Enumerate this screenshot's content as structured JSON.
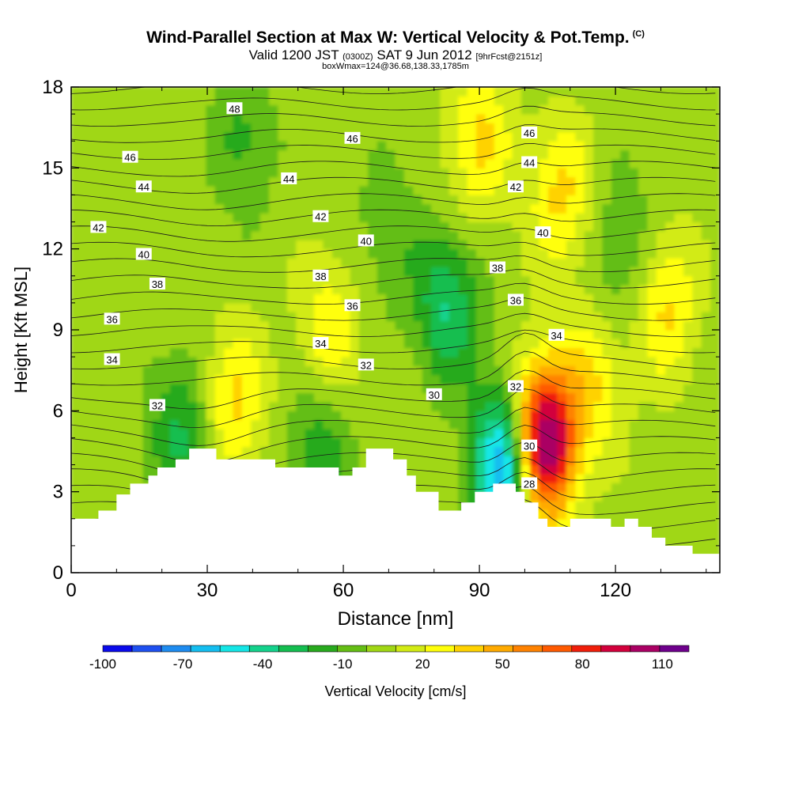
{
  "chart_data": {
    "type": "heatmap",
    "title": "Wind-Parallel Section at Max W: Vertical Velocity & Pot.Temp.",
    "title_corner": "(C)",
    "subtitle_main": "Valid 1200 JST",
    "subtitle_utc": "(0300Z)",
    "subtitle_date": "SAT 9 Jun 2012",
    "subtitle_fcst": "[9hrFcst@2151z]",
    "subtitle2": "boxWmax=124@36.68,138.33,1785m",
    "xlabel": "Distance [nm]",
    "ylabel": "Height [Kft MSL]",
    "xlim": [
      0,
      143
    ],
    "ylim": [
      0,
      18
    ],
    "x_ticks": [
      "0",
      "30",
      "60",
      "90",
      "120"
    ],
    "y_ticks": [
      "0",
      "3",
      "6",
      "9",
      "12",
      "15",
      "18"
    ],
    "colorbar": {
      "label": "Vertical Velocity [cm/s]",
      "tick_labels": [
        "-100",
        "-70",
        "-40",
        "-10",
        "20",
        "50",
        "80",
        "110"
      ],
      "min": -100,
      "max": 120,
      "colors": [
        "#0a0aeb",
        "#1e50f0",
        "#1e8cf0",
        "#14bef0",
        "#14e6e6",
        "#14d28c",
        "#14be50",
        "#28aa1e",
        "#64be14",
        "#a0d714",
        "#d2eb14",
        "#ffff0a",
        "#ffd200",
        "#ffaa00",
        "#ff8200",
        "#ff5a00",
        "#f01e0a",
        "#d2003c",
        "#aa0064",
        "#6e008c"
      ]
    },
    "wind_speed_note": "",
    "terrain": [
      [
        0,
        2
      ],
      [
        6,
        2
      ],
      [
        6,
        2.3
      ],
      [
        10,
        2.3
      ],
      [
        10,
        2.9
      ],
      [
        13,
        2.9
      ],
      [
        13,
        3.3
      ],
      [
        17,
        3.3
      ],
      [
        17,
        3.6
      ],
      [
        19,
        3.6
      ],
      [
        19,
        3.9
      ],
      [
        23,
        3.9
      ],
      [
        23,
        4.2
      ],
      [
        26,
        4.2
      ],
      [
        26,
        4.6
      ],
      [
        32,
        4.6
      ],
      [
        32,
        4.2
      ],
      [
        45,
        4.2
      ],
      [
        45,
        3.9
      ],
      [
        59,
        3.9
      ],
      [
        59,
        3.6
      ],
      [
        62,
        3.6
      ],
      [
        62,
        3.9
      ],
      [
        65,
        3.9
      ],
      [
        65,
        4.6
      ],
      [
        71,
        4.6
      ],
      [
        71,
        4.2
      ],
      [
        74,
        4.2
      ],
      [
        74,
        3.6
      ],
      [
        76,
        3.6
      ],
      [
        76,
        3.0
      ],
      [
        81,
        3.0
      ],
      [
        81,
        2.3
      ],
      [
        86,
        2.3
      ],
      [
        86,
        2.6
      ],
      [
        89,
        2.6
      ],
      [
        89,
        3.0
      ],
      [
        93,
        3.0
      ],
      [
        93,
        3.3
      ],
      [
        98,
        3.3
      ],
      [
        98,
        3.0
      ],
      [
        100,
        3.0
      ],
      [
        100,
        2.6
      ],
      [
        103,
        2.6
      ],
      [
        103,
        2.0
      ],
      [
        105,
        2.0
      ],
      [
        105,
        1.7
      ],
      [
        110,
        1.7
      ],
      [
        110,
        2.0
      ],
      [
        119,
        2.0
      ],
      [
        119,
        1.7
      ],
      [
        122,
        1.7
      ],
      [
        122,
        2.0
      ],
      [
        125,
        2.0
      ],
      [
        125,
        1.7
      ],
      [
        128,
        1.7
      ],
      [
        128,
        1.3
      ],
      [
        131,
        1.3
      ],
      [
        131,
        1.0
      ],
      [
        137,
        1.0
      ],
      [
        137,
        0.7
      ],
      [
        143,
        0.7
      ]
    ],
    "w_centers": [
      {
        "x": 104,
        "y": 4.8,
        "w": 120
      },
      {
        "x": 96,
        "y": 4.0,
        "w": -85
      },
      {
        "x": 83,
        "y": 9.8,
        "w": -40
      },
      {
        "x": 24,
        "y": 5.2,
        "w": -30
      },
      {
        "x": 55,
        "y": 4.6,
        "w": -25
      },
      {
        "x": 38,
        "y": 16.0,
        "w": -20
      },
      {
        "x": 122,
        "y": 12.0,
        "w": -20
      },
      {
        "x": 108,
        "y": 14.0,
        "w": 30
      },
      {
        "x": 90,
        "y": 16.0,
        "w": 30
      },
      {
        "x": 57,
        "y": 9.0,
        "w": 25
      },
      {
        "x": 36,
        "y": 6.4,
        "w": 30
      },
      {
        "x": 131,
        "y": 10.0,
        "w": 30
      },
      {
        "x": 70,
        "y": 12.5,
        "w": -15
      },
      {
        "x": 115,
        "y": 7.0,
        "w": 25
      }
    ],
    "theta_labels": [
      {
        "text": "48",
        "x": 36,
        "y": 17.2
      },
      {
        "text": "46",
        "x": 13,
        "y": 15.4
      },
      {
        "text": "46",
        "x": 62,
        "y": 16.1
      },
      {
        "text": "46",
        "x": 101,
        "y": 16.3
      },
      {
        "text": "44",
        "x": 16,
        "y": 14.3
      },
      {
        "text": "44",
        "x": 48,
        "y": 14.6
      },
      {
        "text": "44",
        "x": 101,
        "y": 15.2
      },
      {
        "text": "42",
        "x": 6,
        "y": 12.8
      },
      {
        "text": "42",
        "x": 55,
        "y": 13.2
      },
      {
        "text": "42",
        "x": 98,
        "y": 14.3
      },
      {
        "text": "40",
        "x": 16,
        "y": 11.8
      },
      {
        "text": "40",
        "x": 65,
        "y": 12.3
      },
      {
        "text": "40",
        "x": 104,
        "y": 12.6
      },
      {
        "text": "38",
        "x": 19,
        "y": 10.7
      },
      {
        "text": "38",
        "x": 55,
        "y": 11.0
      },
      {
        "text": "38",
        "x": 94,
        "y": 11.3
      },
      {
        "text": "36",
        "x": 9,
        "y": 9.4
      },
      {
        "text": "36",
        "x": 62,
        "y": 9.9
      },
      {
        "text": "36",
        "x": 98,
        "y": 10.1
      },
      {
        "text": "34",
        "x": 9,
        "y": 7.9
      },
      {
        "text": "34",
        "x": 55,
        "y": 8.5
      },
      {
        "text": "34",
        "x": 107,
        "y": 8.8
      },
      {
        "text": "32",
        "x": 19,
        "y": 6.2
      },
      {
        "text": "32",
        "x": 65,
        "y": 7.7
      },
      {
        "text": "32",
        "x": 98,
        "y": 6.9
      },
      {
        "text": "30",
        "x": 80,
        "y": 6.6
      },
      {
        "text": "30",
        "x": 101,
        "y": 4.7
      },
      {
        "text": "28",
        "x": 101,
        "y": 3.3
      }
    ]
  }
}
